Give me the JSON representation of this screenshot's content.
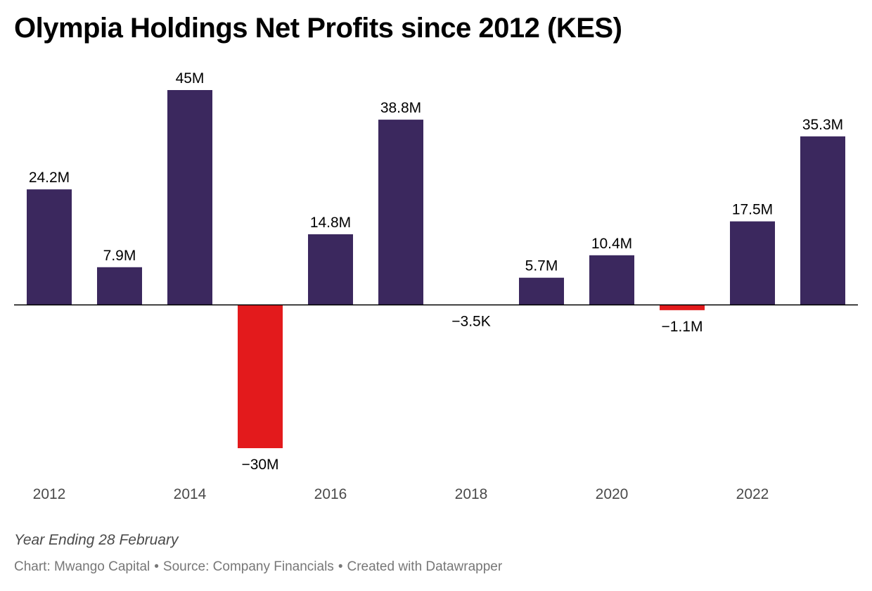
{
  "chart_data": {
    "type": "bar",
    "title": "Olympia Holdings Net Profits since 2012 (KES)",
    "notes": "Year Ending 28 February",
    "footer": {
      "chart_credit": "Chart: Mwango Capital",
      "source": "Source: Company Financials",
      "created_with": "Created with Datawrapper"
    },
    "categories": [
      "2012",
      "2013",
      "2014",
      "2015",
      "2016",
      "2017",
      "2018",
      "2019",
      "2020",
      "2021",
      "2022",
      "2023"
    ],
    "values": [
      24200000,
      7900000,
      45000000,
      -30000000,
      14800000,
      38800000,
      -3500,
      5700000,
      10400000,
      -1100000,
      17500000,
      35300000
    ],
    "value_labels": [
      "24.2M",
      "7.9M",
      "45M",
      "−30M",
      "14.8M",
      "38.8M",
      "−3.5K",
      "5.7M",
      "10.4M",
      "−1.1M",
      "17.5M",
      "35.3M"
    ],
    "x_tick_labels": [
      "2012",
      "",
      "2014",
      "",
      "2016",
      "",
      "2018",
      "",
      "2020",
      "",
      "2022",
      ""
    ],
    "ylim": [
      -30000000,
      45000000
    ],
    "grid": false,
    "colors": {
      "positive": "#3b285e",
      "negative": "#e31a1c",
      "baseline": "#000000"
    }
  }
}
